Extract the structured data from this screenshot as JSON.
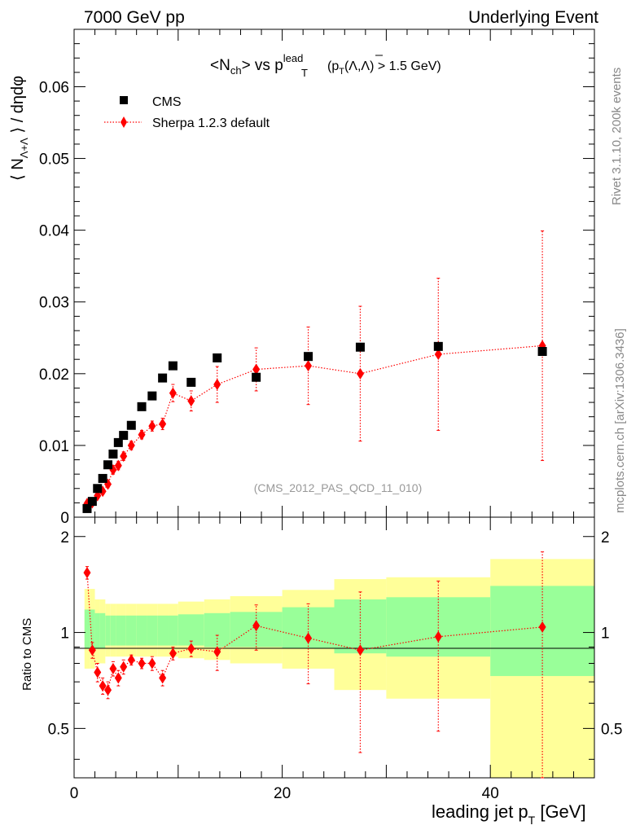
{
  "header": {
    "left": "7000 GeV pp",
    "right": "Underlying Event"
  },
  "side_text": {
    "rivet": "Rivet 3.1.10,  200k events",
    "mcplots": "mcplots.cern.ch [arXiv:1306.3436]"
  },
  "watermark": "(CMS_2012_PAS_QCD_11_010)",
  "colors": {
    "data": "#000000",
    "mc": "#ff0000",
    "band_inner": "#99ff99",
    "band_outer": "#ffff99"
  },
  "chart_data": [
    {
      "type": "scatter",
      "title_parts": {
        "a": "<N",
        "a_sub": "ch",
        "b": "> vs p",
        "b_sup": "lead",
        "b_sub": "T",
        "c": " (p",
        "c_sub": "T",
        "d": "(Λ,Λ) > 1.5 GeV)"
      },
      "ylabel_parts": {
        "a": "⟨ N",
        "a_sub": "Λ+Λ",
        "b": " ⟩ / dηdφ"
      },
      "xlim": [
        0,
        50
      ],
      "ylim": [
        0,
        0.068
      ],
      "yticks": [
        "0",
        "0.01",
        "0.02",
        "0.03",
        "0.04",
        "0.05",
        "0.06"
      ],
      "legend": [
        "CMS",
        "Sherpa 1.2.3 default"
      ],
      "legend_position": "top-left",
      "series": [
        {
          "name": "CMS",
          "marker": "square",
          "x": [
            1.25,
            1.75,
            2.25,
            2.75,
            3.25,
            3.75,
            4.25,
            4.75,
            5.5,
            6.5,
            7.5,
            8.5,
            9.5,
            11.25,
            13.75,
            17.5,
            22.5,
            27.5,
            35.0,
            45.0
          ],
          "y": [
            0.0012,
            0.0022,
            0.004,
            0.0054,
            0.0073,
            0.0088,
            0.0104,
            0.0114,
            0.0128,
            0.0154,
            0.0169,
            0.0194,
            0.0211,
            0.0188,
            0.0222,
            0.0195,
            0.0224,
            0.0237,
            0.0238,
            0.0231
          ]
        },
        {
          "name": "Sherpa 1.2.3 default",
          "marker": "diamond",
          "x": [
            1.25,
            1.75,
            2.25,
            2.75,
            3.25,
            3.75,
            4.25,
            4.75,
            5.5,
            6.5,
            7.5,
            8.5,
            9.5,
            11.25,
            13.75,
            17.5,
            22.5,
            27.5,
            35.0,
            45.0
          ],
          "y": [
            0.0019,
            0.002,
            0.003,
            0.0036,
            0.0046,
            0.0066,
            0.0072,
            0.0085,
            0.01,
            0.0115,
            0.0127,
            0.013,
            0.0173,
            0.0162,
            0.0185,
            0.0206,
            0.0211,
            0.02,
            0.0227,
            0.0239
          ],
          "yerr": [
            0.0003,
            0.0003,
            0.0004,
            0.0004,
            0.0005,
            0.0006,
            0.0006,
            0.0006,
            0.0006,
            0.0006,
            0.0007,
            0.0008,
            0.0012,
            0.0014,
            0.0025,
            0.003,
            0.0054,
            0.0094,
            0.0106,
            0.016
          ]
        }
      ]
    },
    {
      "type": "scatter",
      "ylabel": "Ratio to CMS",
      "xlabel_parts": {
        "a": "leading jet p",
        "a_sub": "T",
        "b": " [GeV]"
      },
      "xlim": [
        0,
        50
      ],
      "ylim": [
        0.35,
        2.3
      ],
      "xticks": [
        "0",
        "20",
        "40"
      ],
      "yticks_labeled": [
        "0.5",
        "1",
        "2"
      ],
      "uncertainty_bands": {
        "bin_edges": [
          1.0,
          1.5,
          2.0,
          2.5,
          3.0,
          3.5,
          4.0,
          4.5,
          5.0,
          6.0,
          7.0,
          8.0,
          9.0,
          10.0,
          12.5,
          15.0,
          20.0,
          25.0,
          30.0,
          40.0,
          50.0
        ],
        "inner_low": [
          0.89,
          0.89,
          0.89,
          0.89,
          0.91,
          0.91,
          0.91,
          0.91,
          0.91,
          0.91,
          0.91,
          0.91,
          0.91,
          0.91,
          0.9,
          0.9,
          0.89,
          0.86,
          0.84,
          0.73
        ],
        "inner_high": [
          1.18,
          1.18,
          1.15,
          1.15,
          1.13,
          1.13,
          1.13,
          1.13,
          1.13,
          1.13,
          1.13,
          1.13,
          1.13,
          1.14,
          1.15,
          1.16,
          1.2,
          1.27,
          1.29,
          1.4
        ],
        "outer_low": [
          0.77,
          0.77,
          0.8,
          0.8,
          0.84,
          0.84,
          0.84,
          0.84,
          0.84,
          0.84,
          0.84,
          0.84,
          0.84,
          0.83,
          0.82,
          0.8,
          0.77,
          0.66,
          0.62,
          0.35
        ],
        "outer_high": [
          1.37,
          1.37,
          1.27,
          1.27,
          1.23,
          1.23,
          1.23,
          1.23,
          1.23,
          1.23,
          1.23,
          1.23,
          1.23,
          1.25,
          1.27,
          1.3,
          1.36,
          1.47,
          1.49,
          1.7
        ]
      },
      "series": [
        {
          "name": "Sherpa 1.2.3 default",
          "marker": "diamond",
          "x": [
            1.25,
            1.75,
            2.25,
            2.75,
            3.25,
            3.75,
            4.25,
            4.75,
            5.5,
            6.5,
            7.5,
            8.5,
            9.5,
            11.25,
            13.75,
            17.5,
            22.5,
            27.5,
            35.0,
            45.0
          ],
          "y": [
            1.54,
            0.88,
            0.75,
            0.68,
            0.66,
            0.77,
            0.72,
            0.78,
            0.82,
            0.8,
            0.8,
            0.72,
            0.86,
            0.89,
            0.87,
            1.05,
            0.96,
            0.88,
            0.97,
            1.04
          ],
          "yerr": [
            0.07,
            0.05,
            0.05,
            0.04,
            0.04,
            0.04,
            0.04,
            0.04,
            0.03,
            0.03,
            0.04,
            0.04,
            0.04,
            0.05,
            0.11,
            0.17,
            0.27,
            0.46,
            0.48,
            0.75
          ]
        }
      ]
    }
  ]
}
